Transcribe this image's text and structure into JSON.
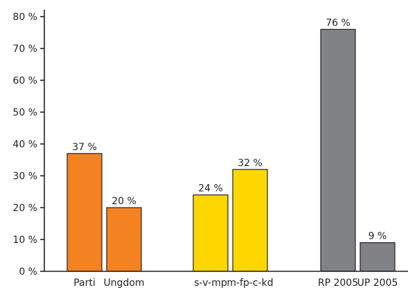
{
  "chart_data": {
    "type": "bar",
    "categories": [
      "Parti",
      "Ungdom",
      "s-v-mp",
      "m-fp-c-kd",
      "RP 2005",
      "UP 2005"
    ],
    "values": [
      37,
      20,
      24,
      32,
      76,
      9
    ],
    "value_labels": [
      "37 %",
      "20 %",
      "24 %",
      "32 %",
      "76 %",
      "9 %"
    ],
    "groups": [
      [
        "Parti",
        "Ungdom"
      ],
      [
        "s-v-mp",
        "m-fp-c-kd"
      ],
      [
        "RP 2005",
        "UP 2005"
      ]
    ],
    "colors": [
      "#f58220",
      "#f58220",
      "#ffd700",
      "#ffd700",
      "#808285",
      "#808285"
    ],
    "ylim": [
      0,
      80
    ],
    "yticks": [
      0,
      10,
      20,
      30,
      40,
      50,
      60,
      70,
      80
    ],
    "ytick_labels": [
      "0 %",
      "10 %",
      "20 %",
      "30 %",
      "40 %",
      "50 %",
      "60 %",
      "70 %",
      "80 %"
    ],
    "title": "",
    "xlabel": "",
    "ylabel": "",
    "grid": false,
    "legend": "none"
  }
}
